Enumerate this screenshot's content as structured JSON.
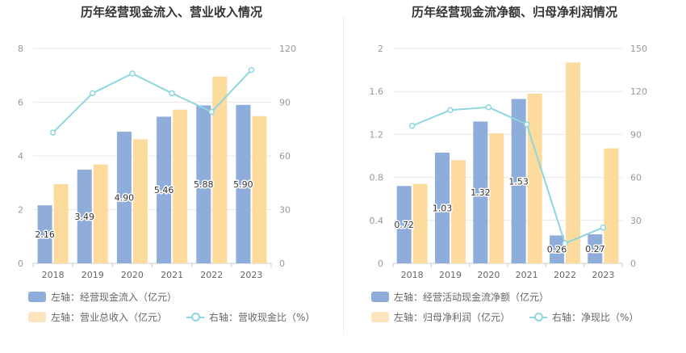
{
  "colors": {
    "bar_primary": "#8eadda",
    "bar_secondary": "#fddb9c",
    "line": "#8dd7df"
  },
  "chart_data": [
    {
      "type": "bar",
      "title": "历年经营现金流入、营业收入情况",
      "categories": [
        "2018",
        "2019",
        "2020",
        "2021",
        "2022",
        "2023"
      ],
      "series": [
        {
          "name": "左轴：经营现金流入（亿元）",
          "axis": "left",
          "kind": "bar",
          "values": [
            2.16,
            3.49,
            4.9,
            5.46,
            5.88,
            5.9
          ],
          "labels": [
            "2.16",
            "3.49",
            "4.90",
            "5.46",
            "5.88",
            "5.90"
          ]
        },
        {
          "name": "左轴：营业总收入（亿元）",
          "axis": "left",
          "kind": "bar",
          "values": [
            2.95,
            3.68,
            4.62,
            5.72,
            6.95,
            5.48
          ]
        },
        {
          "name": "右轴：营收现金比（%）",
          "axis": "right",
          "kind": "line",
          "values": [
            73,
            95,
            106,
            95,
            84.6,
            108
          ]
        }
      ],
      "ylim_left": [
        0,
        8
      ],
      "yticks_left": [
        "0",
        "2",
        "4",
        "6",
        "8"
      ],
      "ylim_right": [
        0,
        120
      ],
      "yticks_right": [
        "0",
        "30",
        "60",
        "90",
        "120"
      ],
      "grid": true,
      "legend_position": "bottom"
    },
    {
      "type": "bar",
      "title": "历年经营现金流净额、归母净利润情况",
      "categories": [
        "2018",
        "2019",
        "2020",
        "2021",
        "2022",
        "2023"
      ],
      "series": [
        {
          "name": "左轴：经营活动现金流净额（亿元）",
          "axis": "left",
          "kind": "bar",
          "values": [
            0.72,
            1.03,
            1.32,
            1.53,
            0.26,
            0.27
          ],
          "labels": [
            "0.72",
            "1.03",
            "1.32",
            "1.53",
            "0.26",
            "0.27"
          ]
        },
        {
          "name": "左轴：归母净利润（亿元）",
          "axis": "left",
          "kind": "bar",
          "values": [
            0.74,
            0.96,
            1.21,
            1.58,
            1.87,
            1.07
          ]
        },
        {
          "name": "右轴：净现比（%）",
          "axis": "right",
          "kind": "line",
          "values": [
            96,
            107,
            109,
            97,
            14,
            25
          ]
        }
      ],
      "ylim_left": [
        0,
        2
      ],
      "yticks_left": [
        "0",
        "0.4",
        "0.8",
        "1.2",
        "1.6",
        "2"
      ],
      "ylim_right": [
        0,
        150
      ],
      "yticks_right": [
        "0",
        "30",
        "60",
        "90",
        "120",
        "150"
      ],
      "grid": true,
      "legend_position": "bottom"
    }
  ]
}
